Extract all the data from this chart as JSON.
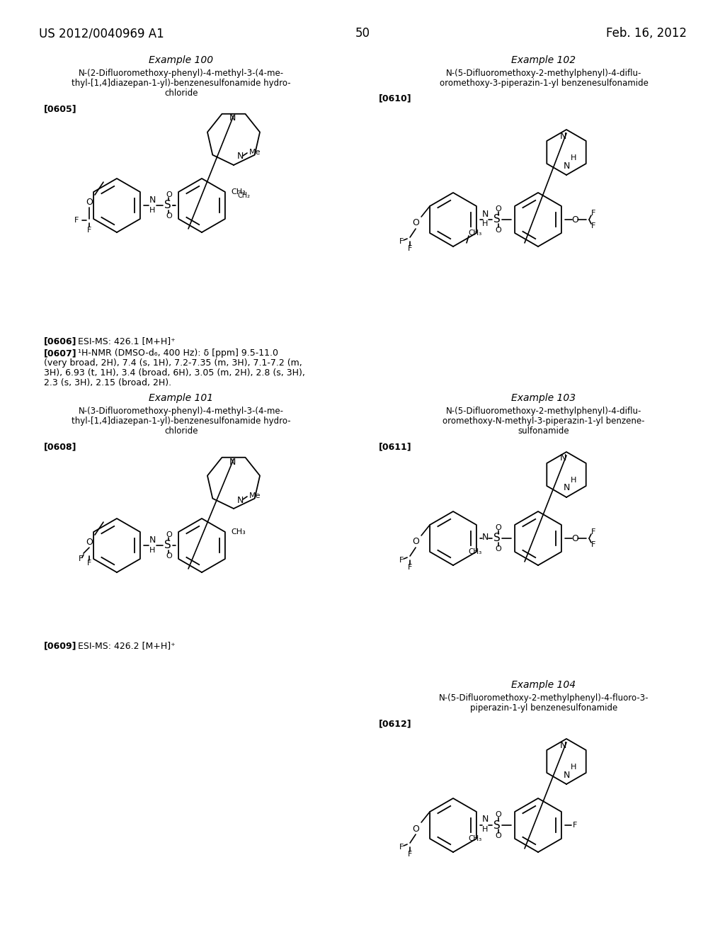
{
  "bg": "#ffffff",
  "header_left": "US 2012/0040969 A1",
  "header_right": "Feb. 16, 2012",
  "page_num": "50",
  "ex100_title": "Example 100",
  "ex100_desc": [
    "N-(2-Difluoromethoxy-phenyl)-4-methyl-3-(4-me-",
    "thyl-[1,4]diazepan-1-yl)-benzenesulfonamide hydro-",
    "chloride"
  ],
  "ex100_tag": "[0605]",
  "ex101_title": "Example 101",
  "ex101_desc": [
    "N-(3-Difluoromethoxy-phenyl)-4-methyl-3-(4-me-",
    "thyl-[1,4]diazepan-1-yl)-benzenesulfonamide hydro-",
    "chloride"
  ],
  "ex101_tag": "[0608]",
  "ex102_title": "Example 102",
  "ex102_desc": [
    "N-(5-Difluoromethoxy-2-methylphenyl)-4-diflu-",
    "oromethoxy-3-piperazin-1-yl benzenesulfonamide"
  ],
  "ex102_tag": "[0610]",
  "ex103_title": "Example 103",
  "ex103_desc": [
    "N-(5-Difluoromethoxy-2-methylphenyl)-4-diflu-",
    "oromethoxy-N-methyl-3-piperazin-1-yl benzene-",
    "sulfonamide"
  ],
  "ex103_tag": "[0611]",
  "ex104_title": "Example 104",
  "ex104_desc": [
    "N-(5-Difluoromethoxy-2-methylphenyl)-4-fluoro-3-",
    "piperazin-1-yl benzenesulfonamide"
  ],
  "ex104_tag": "[0612]",
  "tag0606": "[0606]",
  "txt0606": "ESI-MS: 426.1 [M+H]⁺",
  "tag0607": "[0607]",
  "txt0607_lines": [
    "¹H-NMR (DMSO-d₆, 400 Hz): δ [ppm] 9.5-11.0",
    "(very broad, 2H), 7.4 (s, 1H), 7.2-7.35 (m, 3H), 7.1-7.2 (m,",
    "3H), 6.93 (t, 1H), 3.4 (broad, 6H), 3.05 (m, 2H), 2.8 (s, 3H),",
    "2.3 (s, 3H), 2.15 (broad, 2H)."
  ],
  "tag0609": "[0609]",
  "txt0609": "ESI-MS: 426.2 [M+H]⁺"
}
